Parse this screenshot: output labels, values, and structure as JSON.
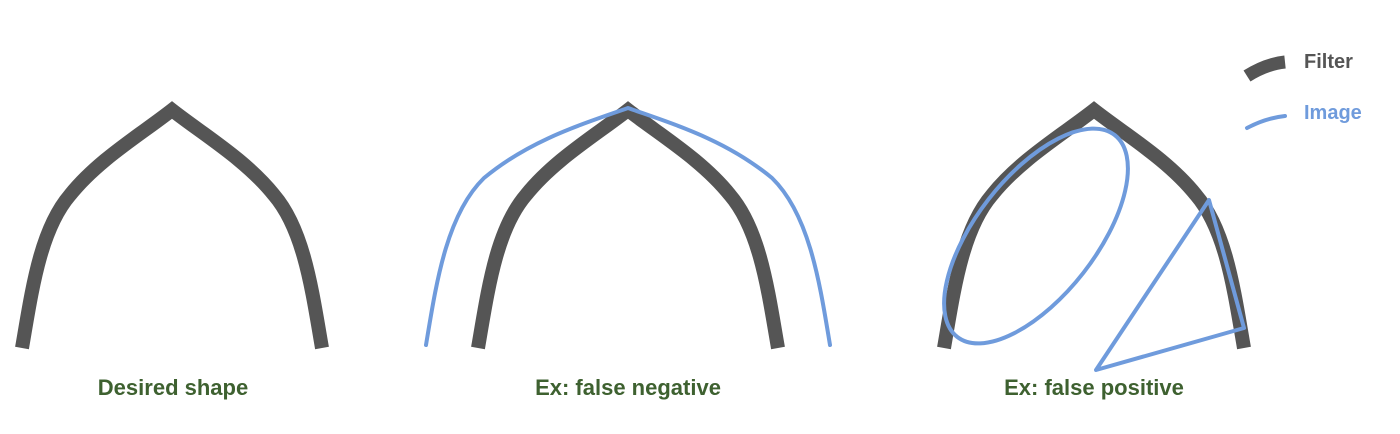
{
  "colors": {
    "filter": "#555555",
    "image": "#6f9bdc",
    "caption": "#3e6130"
  },
  "panels": [
    {
      "caption": "Desired shape"
    },
    {
      "caption": "Ex: false negative"
    },
    {
      "caption": "Ex: false positive"
    }
  ],
  "legend": {
    "filter_label": "Filter",
    "image_label": "Image"
  }
}
